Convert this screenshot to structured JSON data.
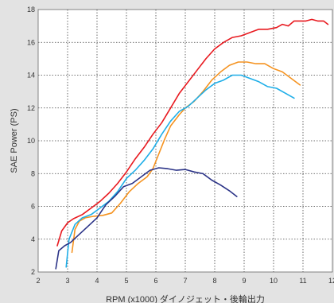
{
  "chart_data": {
    "type": "line",
    "xlabel": "RPM (x1000) ダイノジェット・後輪出力",
    "ylabel": "SAE Power (PS)",
    "xlim": [
      2,
      12
    ],
    "ylim": [
      2,
      18
    ],
    "x_ticks": [
      2,
      3,
      4,
      5,
      6,
      7,
      8,
      9,
      10,
      11,
      12
    ],
    "y_ticks": [
      2,
      4,
      6,
      8,
      10,
      12,
      14,
      16,
      18
    ],
    "grid": true,
    "background": "#e3e3e3",
    "plot_background": "#ffffff",
    "series": [
      {
        "color": "#e8191f",
        "points": [
          [
            2.65,
            3.6
          ],
          [
            2.8,
            4.5
          ],
          [
            3.0,
            5.0
          ],
          [
            3.2,
            5.25
          ],
          [
            3.5,
            5.5
          ],
          [
            3.8,
            5.9
          ],
          [
            4.1,
            6.3
          ],
          [
            4.4,
            6.8
          ],
          [
            4.7,
            7.4
          ],
          [
            5.0,
            8.1
          ],
          [
            5.3,
            8.9
          ],
          [
            5.6,
            9.6
          ],
          [
            5.9,
            10.4
          ],
          [
            6.2,
            11.1
          ],
          [
            6.5,
            12.0
          ],
          [
            6.8,
            12.9
          ],
          [
            7.1,
            13.6
          ],
          [
            7.4,
            14.3
          ],
          [
            7.7,
            15.0
          ],
          [
            8.0,
            15.6
          ],
          [
            8.3,
            16.0
          ],
          [
            8.6,
            16.3
          ],
          [
            8.9,
            16.4
          ],
          [
            9.2,
            16.6
          ],
          [
            9.5,
            16.8
          ],
          [
            9.8,
            16.8
          ],
          [
            10.1,
            16.9
          ],
          [
            10.3,
            17.1
          ],
          [
            10.5,
            17.0
          ],
          [
            10.7,
            17.3
          ],
          [
            10.9,
            17.3
          ],
          [
            11.1,
            17.3
          ],
          [
            11.3,
            17.4
          ],
          [
            11.5,
            17.3
          ],
          [
            11.7,
            17.3
          ],
          [
            11.85,
            17.1
          ]
        ]
      },
      {
        "color": "#f59320",
        "points": [
          [
            3.15,
            3.2
          ],
          [
            3.25,
            4.6
          ],
          [
            3.4,
            5.1
          ],
          [
            3.6,
            5.3
          ],
          [
            3.9,
            5.4
          ],
          [
            4.2,
            5.45
          ],
          [
            4.5,
            5.6
          ],
          [
            4.8,
            6.2
          ],
          [
            5.1,
            6.9
          ],
          [
            5.4,
            7.4
          ],
          [
            5.7,
            7.8
          ],
          [
            5.9,
            8.3
          ],
          [
            6.1,
            9.2
          ],
          [
            6.3,
            10.1
          ],
          [
            6.5,
            10.9
          ],
          [
            6.8,
            11.6
          ],
          [
            7.0,
            12.0
          ],
          [
            7.3,
            12.4
          ],
          [
            7.6,
            13.0
          ],
          [
            7.9,
            13.7
          ],
          [
            8.2,
            14.2
          ],
          [
            8.5,
            14.6
          ],
          [
            8.8,
            14.8
          ],
          [
            9.1,
            14.8
          ],
          [
            9.4,
            14.7
          ],
          [
            9.7,
            14.7
          ],
          [
            10.0,
            14.4
          ],
          [
            10.3,
            14.2
          ],
          [
            10.6,
            13.8
          ],
          [
            10.9,
            13.4
          ]
        ]
      },
      {
        "color": "#1eaee8",
        "points": [
          [
            2.95,
            2.3
          ],
          [
            3.05,
            4.0
          ],
          [
            3.25,
            4.9
          ],
          [
            3.5,
            5.3
          ],
          [
            3.8,
            5.5
          ],
          [
            4.1,
            5.9
          ],
          [
            4.4,
            6.3
          ],
          [
            4.7,
            6.9
          ],
          [
            5.0,
            7.7
          ],
          [
            5.3,
            8.2
          ],
          [
            5.6,
            8.8
          ],
          [
            5.9,
            9.5
          ],
          [
            6.2,
            10.4
          ],
          [
            6.5,
            11.2
          ],
          [
            6.8,
            11.8
          ],
          [
            7.1,
            12.1
          ],
          [
            7.4,
            12.6
          ],
          [
            7.7,
            13.1
          ],
          [
            8.0,
            13.5
          ],
          [
            8.3,
            13.7
          ],
          [
            8.6,
            14.0
          ],
          [
            8.9,
            14.0
          ],
          [
            9.2,
            13.8
          ],
          [
            9.5,
            13.6
          ],
          [
            9.8,
            13.3
          ],
          [
            10.1,
            13.2
          ],
          [
            10.4,
            12.9
          ],
          [
            10.7,
            12.6
          ]
        ]
      },
      {
        "color": "#2b3387",
        "points": [
          [
            2.6,
            2.2
          ],
          [
            2.7,
            3.3
          ],
          [
            2.9,
            3.6
          ],
          [
            3.1,
            3.8
          ],
          [
            3.4,
            4.3
          ],
          [
            3.7,
            4.8
          ],
          [
            4.0,
            5.3
          ],
          [
            4.3,
            6.1
          ],
          [
            4.6,
            6.6
          ],
          [
            4.9,
            7.2
          ],
          [
            5.2,
            7.4
          ],
          [
            5.5,
            7.8
          ],
          [
            5.8,
            8.2
          ],
          [
            6.1,
            8.35
          ],
          [
            6.4,
            8.3
          ],
          [
            6.7,
            8.2
          ],
          [
            7.0,
            8.25
          ],
          [
            7.3,
            8.1
          ],
          [
            7.6,
            8.0
          ],
          [
            7.9,
            7.6
          ],
          [
            8.2,
            7.3
          ],
          [
            8.5,
            6.95
          ],
          [
            8.75,
            6.6
          ]
        ]
      }
    ]
  }
}
